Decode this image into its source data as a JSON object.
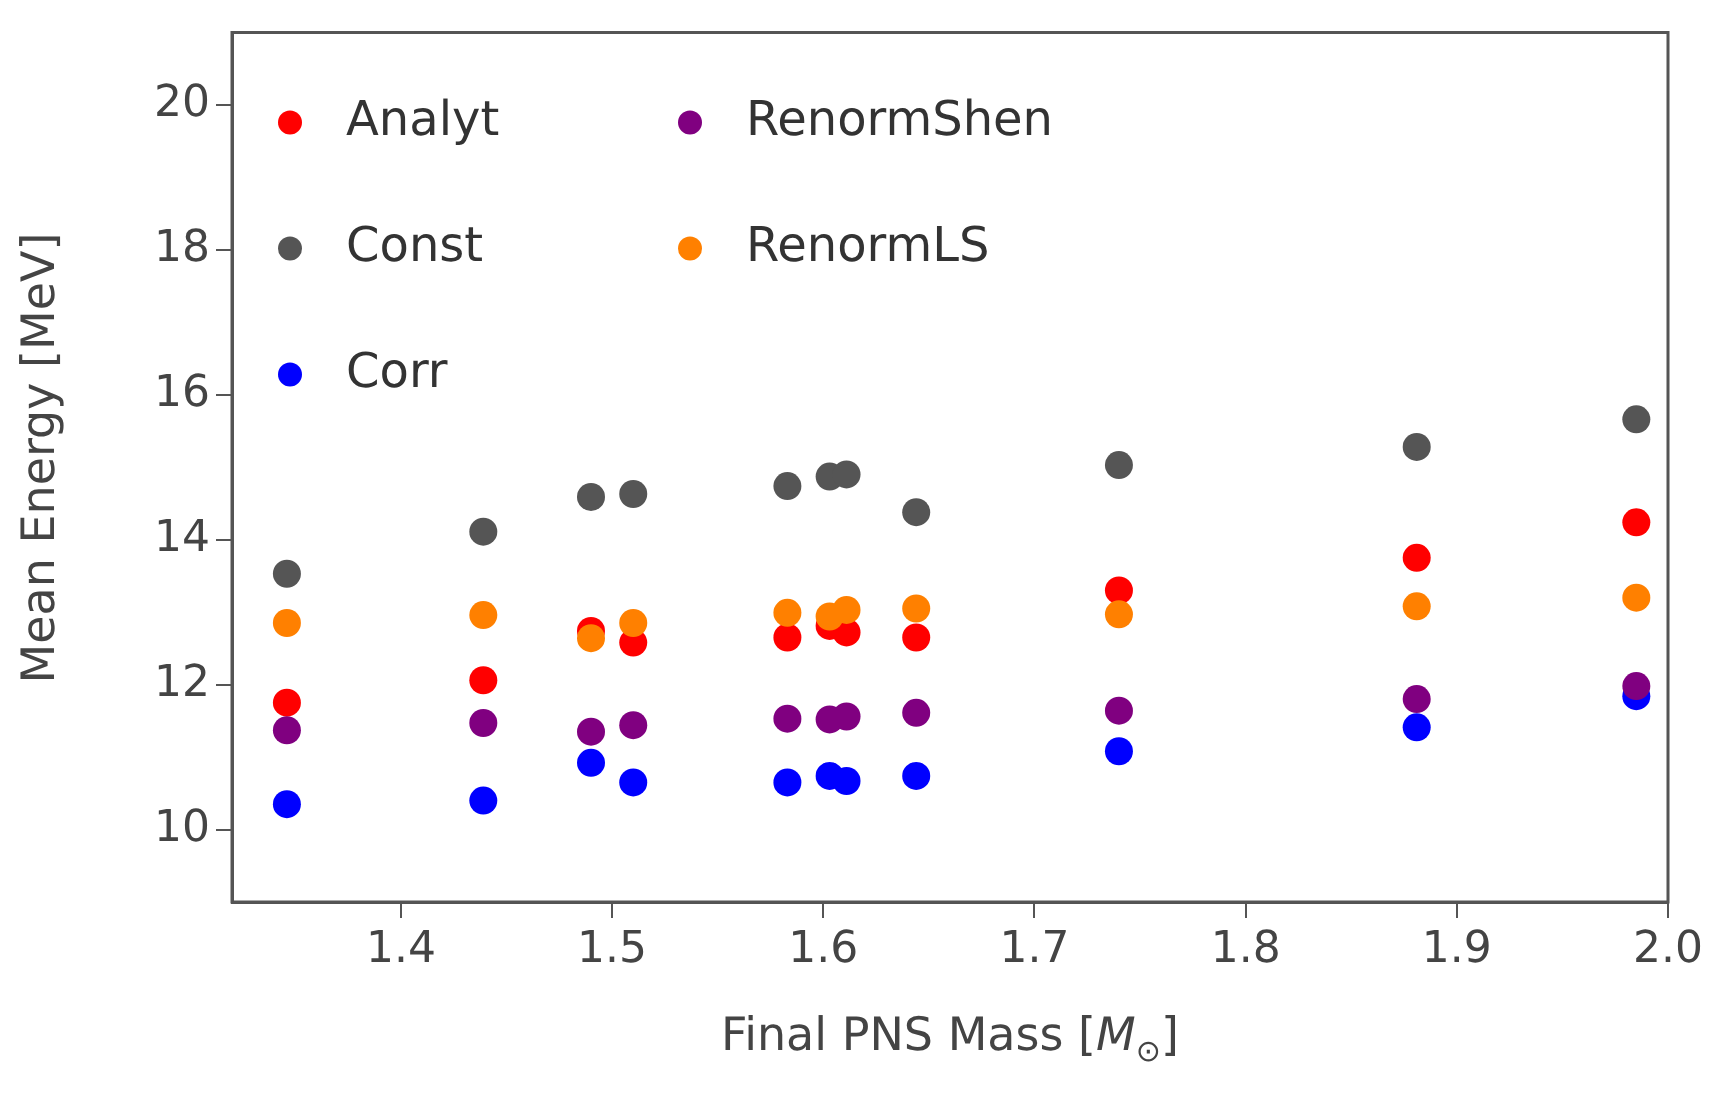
{
  "chart_data": {
    "type": "scatter",
    "xlabel": "Final PNS Mass [M$_{⊙}$]",
    "ylabel": "Mean Energy [MeV]",
    "x": [
      1.346,
      1.439,
      1.49,
      1.51,
      1.583,
      1.603,
      1.611,
      1.644,
      1.74,
      1.881,
      1.985
    ],
    "series": [
      {
        "name": "Analyt",
        "color": "#ff0000",
        "values": [
          11.75,
          12.06,
          12.74,
          12.58,
          12.65,
          12.81,
          12.72,
          12.65,
          13.3,
          13.75,
          14.24
        ]
      },
      {
        "name": "Const",
        "color": "#555555",
        "values": [
          13.53,
          14.11,
          14.59,
          14.63,
          14.74,
          14.87,
          14.9,
          14.38,
          15.03,
          15.28,
          15.66
        ]
      },
      {
        "name": "Corr",
        "color": "#0000ff",
        "values": [
          10.35,
          10.4,
          10.92,
          10.65,
          10.65,
          10.74,
          10.67,
          10.74,
          11.08,
          11.41,
          11.84
        ]
      },
      {
        "name": "RenormShen",
        "color": "#800080",
        "values": [
          11.37,
          11.47,
          11.35,
          11.44,
          11.53,
          11.52,
          11.56,
          11.61,
          11.64,
          11.8,
          11.98
        ]
      },
      {
        "name": "RenormLS",
        "color": "#ff8000",
        "values": [
          12.85,
          12.96,
          12.64,
          12.85,
          12.99,
          12.94,
          13.03,
          13.05,
          12.97,
          13.08,
          13.2
        ]
      }
    ],
    "xlim": [
      1.32,
      2.0
    ],
    "xticks": [
      1.4,
      1.5,
      1.6,
      1.7,
      1.8,
      1.9,
      {
        "value": 2,
        "label": "2.0"
      }
    ],
    "ylim": [
      9,
      21
    ],
    "yticks": [
      10,
      12,
      14,
      16,
      18,
      20
    ],
    "grid": false,
    "legend": "top left",
    "marker": "circle"
  }
}
